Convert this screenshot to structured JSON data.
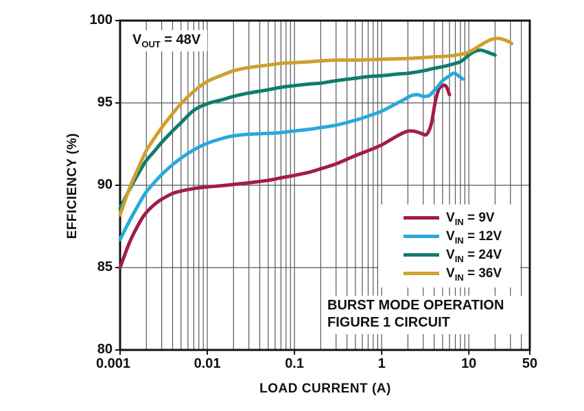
{
  "chart_data": {
    "type": "line",
    "title": "",
    "xlabel": "LOAD CURRENT (A)",
    "ylabel": "EFFICIENCY (%)",
    "x_scale": "log",
    "xlim": [
      0.001,
      50
    ],
    "ylim": [
      80,
      100
    ],
    "x_ticks": [
      "0.001",
      "0.01",
      "0.1",
      "1",
      "10",
      "50"
    ],
    "x_tick_values": [
      0.001,
      0.01,
      0.1,
      1,
      10,
      50
    ],
    "y_ticks": [
      "100",
      "95",
      "90",
      "85",
      "80"
    ],
    "y_tick_values": [
      100,
      95,
      90,
      85,
      80
    ],
    "x_gridlines": [
      0.002,
      0.003,
      0.004,
      0.005,
      0.006,
      0.007,
      0.008,
      0.009,
      0.01,
      0.02,
      0.03,
      0.04,
      0.05,
      0.06,
      0.07,
      0.08,
      0.09,
      0.1,
      0.2,
      0.3,
      0.4,
      0.5,
      0.6,
      0.7,
      0.8,
      0.9,
      1,
      2,
      3,
      4,
      5,
      6,
      7,
      8,
      9,
      10,
      20,
      30,
      40
    ],
    "y_gridlines": [
      85,
      90,
      95
    ],
    "grid_on": true,
    "grid_color": "#55565a",
    "frame_color": "#121212",
    "legend_position": "inside lower right",
    "annotation": {
      "prefix": "V",
      "sub": "OUT",
      "rest": " = 48V",
      "text": "VOUT = 48V"
    },
    "notes": [
      "BURST MODE OPERATION",
      "FIGURE 1 CIRCUIT"
    ],
    "series": [
      {
        "name": "VIN = 9V",
        "label": {
          "prefix": "V",
          "sub": "IN",
          "rest": " = 9V"
        },
        "color": "#A31C4B",
        "points": [
          [
            0.001,
            85.0
          ],
          [
            0.0013,
            86.6
          ],
          [
            0.0017,
            87.8
          ],
          [
            0.002,
            88.35
          ],
          [
            0.0025,
            88.85
          ],
          [
            0.003,
            89.15
          ],
          [
            0.004,
            89.5
          ],
          [
            0.005,
            89.65
          ],
          [
            0.007,
            89.8
          ],
          [
            0.01,
            89.9
          ],
          [
            0.015,
            89.98
          ],
          [
            0.02,
            90.05
          ],
          [
            0.03,
            90.15
          ],
          [
            0.05,
            90.3
          ],
          [
            0.07,
            90.45
          ],
          [
            0.1,
            90.6
          ],
          [
            0.15,
            90.8
          ],
          [
            0.2,
            91.0
          ],
          [
            0.3,
            91.3
          ],
          [
            0.5,
            91.8
          ],
          [
            0.7,
            92.1
          ],
          [
            1,
            92.45
          ],
          [
            1.4,
            92.9
          ],
          [
            1.8,
            93.2
          ],
          [
            2.1,
            93.3
          ],
          [
            2.5,
            93.25
          ],
          [
            3,
            93.1
          ],
          [
            3.3,
            93.1
          ],
          [
            3.7,
            93.7
          ],
          [
            4.1,
            95.0
          ],
          [
            4.5,
            95.8
          ],
          [
            5,
            96.05
          ],
          [
            5.5,
            96.0
          ],
          [
            6,
            95.5
          ]
        ]
      },
      {
        "name": "VIN = 12V",
        "label": {
          "prefix": "V",
          "sub": "IN",
          "rest": " = 12V"
        },
        "color": "#29A9DC",
        "points": [
          [
            0.001,
            86.7
          ],
          [
            0.0013,
            87.9
          ],
          [
            0.0017,
            89.0
          ],
          [
            0.002,
            89.6
          ],
          [
            0.0025,
            90.2
          ],
          [
            0.003,
            90.65
          ],
          [
            0.004,
            91.25
          ],
          [
            0.005,
            91.65
          ],
          [
            0.007,
            92.15
          ],
          [
            0.01,
            92.55
          ],
          [
            0.015,
            92.85
          ],
          [
            0.02,
            93.0
          ],
          [
            0.03,
            93.1
          ],
          [
            0.05,
            93.15
          ],
          [
            0.07,
            93.2
          ],
          [
            0.1,
            93.3
          ],
          [
            0.15,
            93.4
          ],
          [
            0.2,
            93.5
          ],
          [
            0.3,
            93.65
          ],
          [
            0.5,
            93.95
          ],
          [
            0.7,
            94.2
          ],
          [
            1,
            94.5
          ],
          [
            1.4,
            94.9
          ],
          [
            1.8,
            95.2
          ],
          [
            2.2,
            95.45
          ],
          [
            2.6,
            95.5
          ],
          [
            3,
            95.4
          ],
          [
            3.5,
            95.45
          ],
          [
            4,
            95.75
          ],
          [
            4.5,
            96.05
          ],
          [
            5,
            96.35
          ],
          [
            6,
            96.65
          ],
          [
            6.8,
            96.8
          ],
          [
            7.8,
            96.6
          ],
          [
            8.5,
            96.45
          ]
        ]
      },
      {
        "name": "VIN = 24V",
        "label": {
          "prefix": "V",
          "sub": "IN",
          "rest": " = 24V"
        },
        "color": "#0F7D6C",
        "points": [
          [
            0.001,
            88.6
          ],
          [
            0.0013,
            89.8
          ],
          [
            0.0017,
            90.9
          ],
          [
            0.002,
            91.5
          ],
          [
            0.0025,
            92.1
          ],
          [
            0.003,
            92.6
          ],
          [
            0.004,
            93.3
          ],
          [
            0.005,
            93.8
          ],
          [
            0.007,
            94.55
          ],
          [
            0.01,
            94.95
          ],
          [
            0.015,
            95.2
          ],
          [
            0.02,
            95.4
          ],
          [
            0.03,
            95.6
          ],
          [
            0.05,
            95.8
          ],
          [
            0.07,
            95.95
          ],
          [
            0.1,
            96.05
          ],
          [
            0.15,
            96.15
          ],
          [
            0.2,
            96.2
          ],
          [
            0.3,
            96.35
          ],
          [
            0.5,
            96.5
          ],
          [
            0.7,
            96.6
          ],
          [
            1,
            96.65
          ],
          [
            1.5,
            96.75
          ],
          [
            2,
            96.8
          ],
          [
            3,
            96.95
          ],
          [
            4,
            97.1
          ],
          [
            5,
            97.2
          ],
          [
            6,
            97.3
          ],
          [
            7,
            97.4
          ],
          [
            8,
            97.5
          ],
          [
            9,
            97.7
          ],
          [
            10,
            97.9
          ],
          [
            11,
            98.05
          ],
          [
            12.5,
            98.18
          ],
          [
            14,
            98.2
          ],
          [
            16,
            98.1
          ],
          [
            18,
            98.0
          ],
          [
            20,
            97.9
          ]
        ]
      },
      {
        "name": "VIN = 36V",
        "label": {
          "prefix": "V",
          "sub": "IN",
          "rest": " = 36V"
        },
        "color": "#CDA02F",
        "points": [
          [
            0.001,
            88.2
          ],
          [
            0.0013,
            89.9
          ],
          [
            0.0017,
            91.3
          ],
          [
            0.002,
            92.1
          ],
          [
            0.0025,
            92.9
          ],
          [
            0.003,
            93.5
          ],
          [
            0.004,
            94.35
          ],
          [
            0.005,
            94.95
          ],
          [
            0.007,
            95.7
          ],
          [
            0.01,
            96.3
          ],
          [
            0.015,
            96.7
          ],
          [
            0.02,
            96.95
          ],
          [
            0.03,
            97.15
          ],
          [
            0.05,
            97.3
          ],
          [
            0.07,
            97.4
          ],
          [
            0.1,
            97.45
          ],
          [
            0.15,
            97.5
          ],
          [
            0.2,
            97.55
          ],
          [
            0.3,
            97.6
          ],
          [
            0.5,
            97.6
          ],
          [
            0.7,
            97.62
          ],
          [
            1,
            97.65
          ],
          [
            1.5,
            97.68
          ],
          [
            2,
            97.7
          ],
          [
            3,
            97.75
          ],
          [
            4,
            97.8
          ],
          [
            5,
            97.82
          ],
          [
            6,
            97.85
          ],
          [
            7,
            97.9
          ],
          [
            8,
            97.95
          ],
          [
            9,
            98.0
          ],
          [
            10,
            98.1
          ],
          [
            11,
            98.2
          ],
          [
            12,
            98.32
          ],
          [
            14,
            98.55
          ],
          [
            16,
            98.72
          ],
          [
            18,
            98.85
          ],
          [
            20,
            98.9
          ],
          [
            22,
            98.92
          ],
          [
            25,
            98.85
          ],
          [
            28,
            98.75
          ],
          [
            31,
            98.6
          ]
        ]
      }
    ]
  }
}
